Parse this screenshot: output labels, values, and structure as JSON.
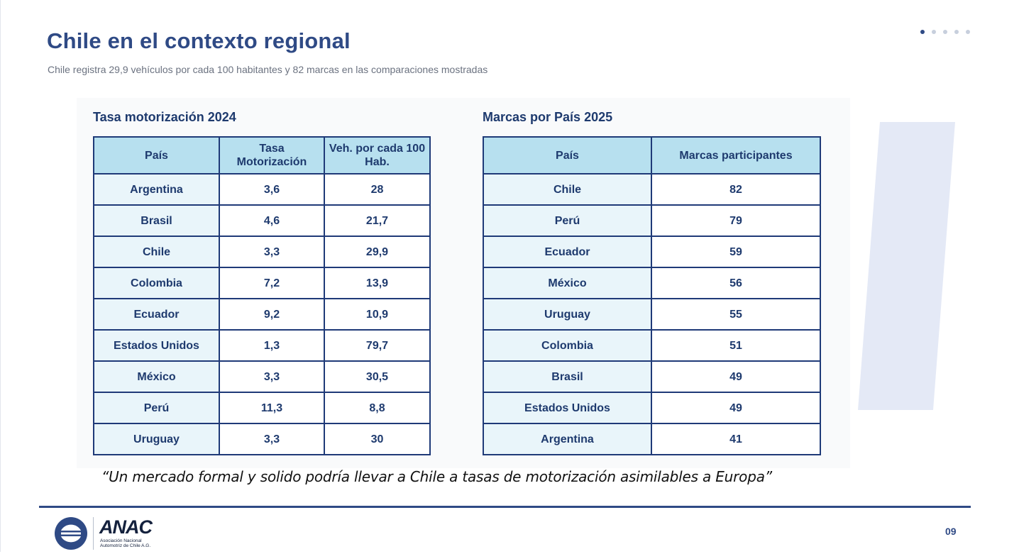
{
  "slide": {
    "title": "Chile en el contexto regional",
    "subtitle": "Chile registra 29,9 vehículos por cada 100 habitantes y 82 marcas en las comparaciones mostradas",
    "page_number": "09",
    "dots": {
      "count": 5,
      "active_index": 0
    }
  },
  "table_motorizacion": {
    "title": "Tasa motorización 2024",
    "headers": [
      "País",
      "Tasa Motorización",
      "Veh. por cada 100 Hab."
    ],
    "rows": [
      [
        "Argentina",
        "3,6",
        "28"
      ],
      [
        "Brasil",
        "4,6",
        "21,7"
      ],
      [
        "Chile",
        "3,3",
        "29,9"
      ],
      [
        "Colombia",
        "7,2",
        "13,9"
      ],
      [
        "Ecuador",
        "9,2",
        "10,9"
      ],
      [
        "Estados Unidos",
        "1,3",
        "79,7"
      ],
      [
        "México",
        "3,3",
        "30,5"
      ],
      [
        "Perú",
        "11,3",
        "8,8"
      ],
      [
        "Uruguay",
        "3,3",
        "30"
      ]
    ]
  },
  "table_marcas": {
    "title": "Marcas por País 2025",
    "headers": [
      "País",
      "Marcas participantes"
    ],
    "rows": [
      [
        "Chile",
        "82"
      ],
      [
        "Perú",
        "79"
      ],
      [
        "Ecuador",
        "59"
      ],
      [
        "México",
        "56"
      ],
      [
        "Uruguay",
        "55"
      ],
      [
        "Colombia",
        "51"
      ],
      [
        "Brasil",
        "49"
      ],
      [
        "Estados Unidos",
        "49"
      ],
      [
        "Argentina",
        "41"
      ]
    ]
  },
  "quote": "“Un mercado formal y solido podría llevar a Chile a tasas de motorización asimilables a Europa”",
  "footer": {
    "logo_name": "ANAC",
    "logo_subtitle": "Asociación Nacional Automotriz de Chile A.G."
  },
  "colors": {
    "title": "#2f4a85",
    "table_border": "#1f3a78",
    "header_fill": "#b7e0ef",
    "country_fill": "#e9f5fa",
    "accent_rule": "#2f4a85"
  }
}
